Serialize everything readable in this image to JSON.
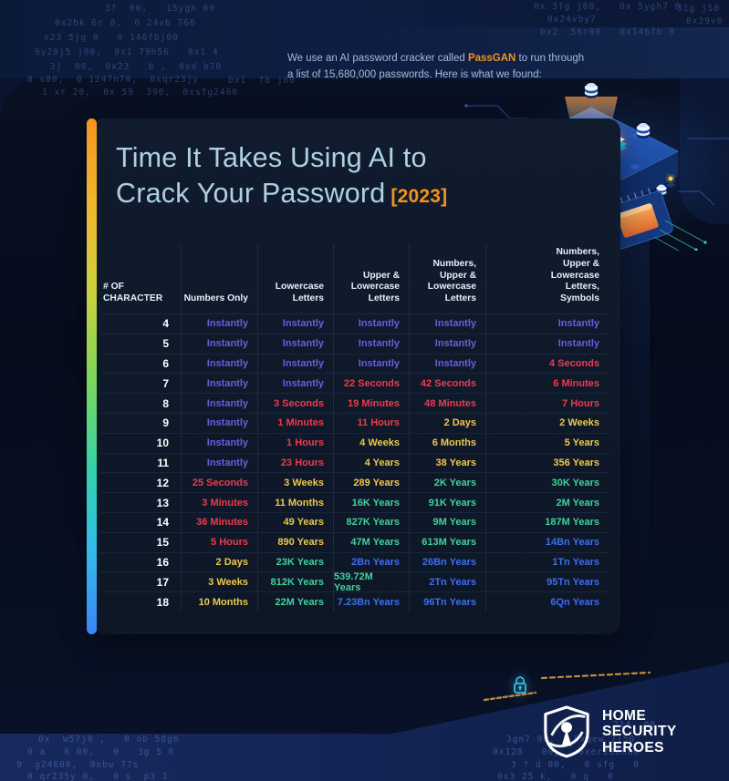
{
  "intro": {
    "before": "We use an AI password cracker called ",
    "brand": "PassGAN",
    "after": " to run through",
    "line2": "a list of 15,680,000 passwords. Here is what we found:"
  },
  "title": {
    "line1": "Time It Takes Using AI to",
    "line2": "Crack Your Password",
    "year": "[2023]"
  },
  "chart_data": {
    "type": "table",
    "title": "Time It Takes Using AI to Crack Your Password [2023]",
    "columns": [
      "# OF\nCHARACTER",
      "Numbers Only",
      "Lowercase\nLetters",
      "Upper &\nLowercase\nLetters",
      "Numbers,\nUpper &\nLowercase\nLetters",
      "Numbers,\nUpper &\nLowercase\nLetters,\nSymbols"
    ],
    "color_legend": {
      "purple": "#6A5CE0",
      "red": "#EE3A4E",
      "yellow": "#EEC84A",
      "green": "#41D19B",
      "blue": "#3E6CF2"
    },
    "rows": [
      {
        "chars": "4",
        "cells": [
          {
            "t": "Instantly",
            "c": "purple"
          },
          {
            "t": "Instantly",
            "c": "purple"
          },
          {
            "t": "Instantly",
            "c": "purple"
          },
          {
            "t": "Instantly",
            "c": "purple"
          },
          {
            "t": "Instantly",
            "c": "purple"
          }
        ]
      },
      {
        "chars": "5",
        "cells": [
          {
            "t": "Instantly",
            "c": "purple"
          },
          {
            "t": "Instantly",
            "c": "purple"
          },
          {
            "t": "Instantly",
            "c": "purple"
          },
          {
            "t": "Instantly",
            "c": "purple"
          },
          {
            "t": "Instantly",
            "c": "purple"
          }
        ]
      },
      {
        "chars": "6",
        "cells": [
          {
            "t": "Instantly",
            "c": "purple"
          },
          {
            "t": "Instantly",
            "c": "purple"
          },
          {
            "t": "Instantly",
            "c": "purple"
          },
          {
            "t": "Instantly",
            "c": "purple"
          },
          {
            "t": "4 Seconds",
            "c": "red"
          }
        ]
      },
      {
        "chars": "7",
        "cells": [
          {
            "t": "Instantly",
            "c": "purple"
          },
          {
            "t": "Instantly",
            "c": "purple"
          },
          {
            "t": "22 Seconds",
            "c": "red"
          },
          {
            "t": "42 Seconds",
            "c": "red"
          },
          {
            "t": "6 Minutes",
            "c": "red"
          }
        ]
      },
      {
        "chars": "8",
        "cells": [
          {
            "t": "Instantly",
            "c": "purple"
          },
          {
            "t": "3 Seconds",
            "c": "red"
          },
          {
            "t": "19 Minutes",
            "c": "red"
          },
          {
            "t": "48 Minutes",
            "c": "red"
          },
          {
            "t": "7 Hours",
            "c": "red"
          }
        ]
      },
      {
        "chars": "9",
        "cells": [
          {
            "t": "Instantly",
            "c": "purple"
          },
          {
            "t": "1 Minutes",
            "c": "red"
          },
          {
            "t": "11 Hours",
            "c": "red"
          },
          {
            "t": "2 Days",
            "c": "yellow"
          },
          {
            "t": "2 Weeks",
            "c": "yellow"
          }
        ]
      },
      {
        "chars": "10",
        "cells": [
          {
            "t": "Instantly",
            "c": "purple"
          },
          {
            "t": "1 Hours",
            "c": "red"
          },
          {
            "t": "4 Weeks",
            "c": "yellow"
          },
          {
            "t": "6 Months",
            "c": "yellow"
          },
          {
            "t": "5 Years",
            "c": "yellow"
          }
        ]
      },
      {
        "chars": "11",
        "cells": [
          {
            "t": "Instantly",
            "c": "purple"
          },
          {
            "t": "23 Hours",
            "c": "red"
          },
          {
            "t": "4 Years",
            "c": "yellow"
          },
          {
            "t": "38 Years",
            "c": "yellow"
          },
          {
            "t": "356 Years",
            "c": "yellow"
          }
        ]
      },
      {
        "chars": "12",
        "cells": [
          {
            "t": "25 Seconds",
            "c": "red"
          },
          {
            "t": "3 Weeks",
            "c": "yellow"
          },
          {
            "t": "289 Years",
            "c": "yellow"
          },
          {
            "t": "2K Years",
            "c": "green"
          },
          {
            "t": "30K Years",
            "c": "green"
          }
        ]
      },
      {
        "chars": "13",
        "cells": [
          {
            "t": "3 Minutes",
            "c": "red"
          },
          {
            "t": "11 Months",
            "c": "yellow"
          },
          {
            "t": "16K Years",
            "c": "green"
          },
          {
            "t": "91K Years",
            "c": "green"
          },
          {
            "t": "2M Years",
            "c": "green"
          }
        ]
      },
      {
        "chars": "14",
        "cells": [
          {
            "t": "36 Minutes",
            "c": "red"
          },
          {
            "t": "49 Years",
            "c": "yellow"
          },
          {
            "t": "827K Years",
            "c": "green"
          },
          {
            "t": "9M Years",
            "c": "green"
          },
          {
            "t": "187M Years",
            "c": "green"
          }
        ]
      },
      {
        "chars": "15",
        "cells": [
          {
            "t": "5 Hours",
            "c": "red"
          },
          {
            "t": "890 Years",
            "c": "yellow"
          },
          {
            "t": "47M Years",
            "c": "green"
          },
          {
            "t": "613M Years",
            "c": "green"
          },
          {
            "t": "14Bn Years",
            "c": "blue"
          }
        ]
      },
      {
        "chars": "16",
        "cells": [
          {
            "t": "2 Days",
            "c": "yellow"
          },
          {
            "t": "23K Years",
            "c": "green"
          },
          {
            "t": "2Bn Years",
            "c": "blue"
          },
          {
            "t": "26Bn Years",
            "c": "blue"
          },
          {
            "t": "1Tn Years",
            "c": "blue"
          }
        ]
      },
      {
        "chars": "17",
        "cells": [
          {
            "t": "3 Weeks",
            "c": "yellow"
          },
          {
            "t": "812K Years",
            "c": "green"
          },
          {
            "t": "539.72M Years",
            "c": "green"
          },
          {
            "t": "2Tn Years",
            "c": "blue"
          },
          {
            "t": "95Tn Years",
            "c": "blue"
          }
        ]
      },
      {
        "chars": "18",
        "cells": [
          {
            "t": "10 Months",
            "c": "yellow"
          },
          {
            "t": "22M Years",
            "c": "green"
          },
          {
            "t": "7.23Bn Years",
            "c": "blue"
          },
          {
            "t": "96Tn Years",
            "c": "blue"
          },
          {
            "t": "6Qn Years",
            "c": "blue"
          }
        ]
      }
    ]
  },
  "accent_colors": {
    "orange": "#F5921E",
    "title_blue": "#AFD0E3",
    "lock_cyan": "#3CC9F2",
    "dash_gold": "#D79A3C"
  },
  "logo": {
    "line1": "HOME",
    "line2": "SECURITY",
    "line3": "HEROES"
  },
  "background_code": [
    "3f  00,   15ygh 09",
    "0x2bk 6r 0,  0 24vb 760",
    "x23 5jg 0   0 146fbj00",
    "9y28j5 j00,  0x1 79h56   0x1 4",
    "3j  00,  0x23   b ,  0xd b70",
    "8 s00,  0 1247n70,  0xqr23jy",
    "1 xr 20,  0x 59  390,  0xsfg2460",
    "0x1  fb j00",
    "0x 3fg j00,   0x 5ygh7 0",
    "0x24vby7",
    "0x2  56r00   0x146fb 0",
    "31g j50",
    "0x29v0 7",
    "0x  w57j0 ,   0 ob 58g0",
    "0 a   6 00,   0   3g 5 0",
    "9  g24600,  0xbw 7?s",
    "0 qr235y 0,   0 s  p3 1",
    "3gn7 00,   0xqew 7j50",
    "0x128   00,   0xer236h00",
    "3 ? d 00,   0 sfg   0",
    "0x3 25 k,   0 q   0",
    "214  00"
  ]
}
